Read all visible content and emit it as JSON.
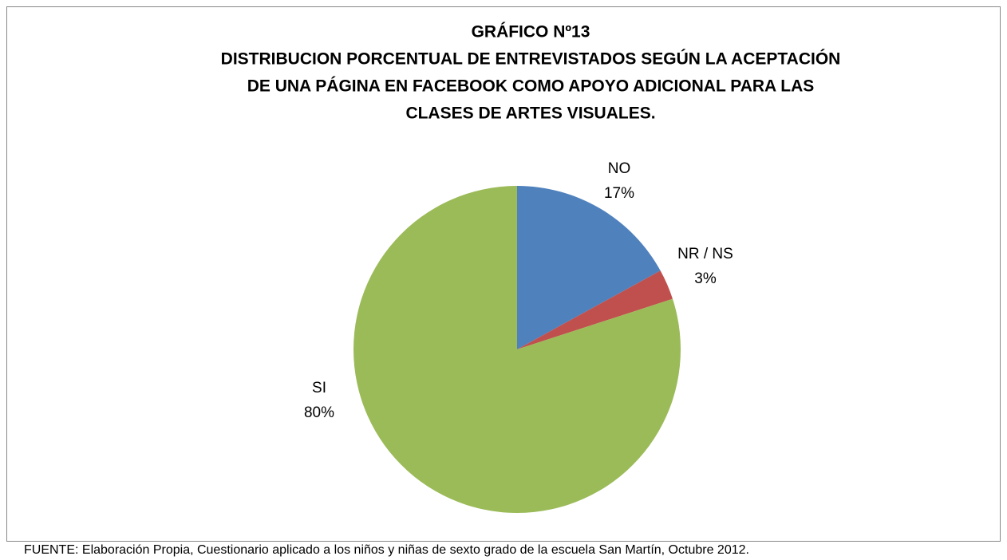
{
  "chart_data": {
    "type": "pie",
    "title": [
      "GRÁFICO Nº13",
      "DISTRIBUCION PORCENTUAL  DE ENTREVISTADOS SEGÚN LA ACEPTACIÓN",
      "DE UNA PÁGINA EN FACEBOOK COMO APOYO ADICIONAL PARA LAS",
      "CLASES DE ARTES VISUALES."
    ],
    "categories": [
      "NO",
      "NR / NS",
      "SI"
    ],
    "values": [
      17,
      3,
      80
    ],
    "value_labels": [
      "17%",
      "3%",
      "80%"
    ],
    "colors": [
      "#4f81bd",
      "#c0504d",
      "#9bbb59"
    ],
    "source": "FUENTE: Elaboración Propia, Cuestionario aplicado a los niños y niñas de sexto grado de la escuela San Martín, Octubre 2012."
  }
}
